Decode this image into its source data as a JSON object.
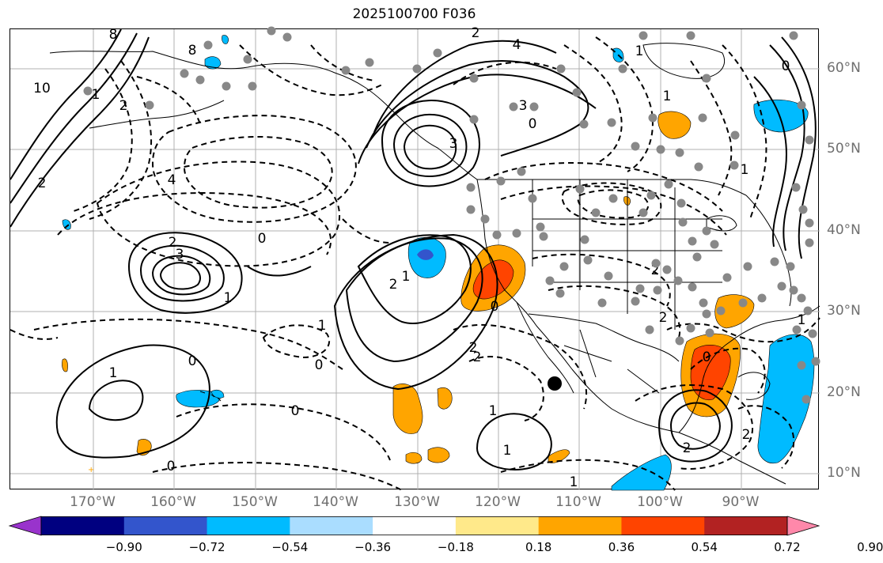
{
  "title": "2025100700 F036",
  "lon_labels": [
    "170°W",
    "160°W",
    "150°W",
    "140°W",
    "130°W",
    "120°W",
    "110°W",
    "100°W",
    "90°W"
  ],
  "lat_labels": [
    "60°N",
    "50°N",
    "40°N",
    "30°N",
    "20°N",
    "10°N"
  ],
  "colorbar": {
    "ticks": [
      "−0.90",
      "−0.72",
      "−0.54",
      "−0.36",
      "−0.18",
      "0.18",
      "0.36",
      "0.54",
      "0.72",
      "0.90"
    ],
    "colors": [
      "#9933cc",
      "#000080",
      "#3355cc",
      "#00bbff",
      "#aaddff",
      "#ffffff",
      "#ffe98a",
      "#ffa500",
      "#ff4400",
      "#b22222",
      "#ff88aa"
    ]
  },
  "contour_labels": [
    "8",
    "10",
    "8",
    "2",
    "4",
    "2",
    "0",
    "2",
    "3",
    "4",
    "3",
    "2",
    "0",
    "3",
    "1",
    "2",
    "1",
    "0",
    "1",
    "1",
    "0",
    "2",
    "0",
    "1",
    "0",
    "1",
    "1",
    "0",
    "2",
    "2",
    "2",
    "1",
    "0",
    "2",
    "2",
    "1",
    "0",
    "1",
    "1",
    "1"
  ],
  "colors": {
    "axis_label": "#6f6f6f",
    "grid": "#b0b0b0",
    "contour": "#000000",
    "station_marker": "#888888"
  }
}
